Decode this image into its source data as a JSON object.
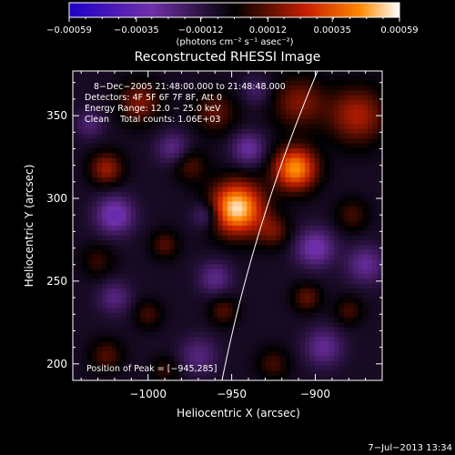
{
  "chart_data": {
    "type": "heatmap",
    "title": "Reconstructed RHESSI Image",
    "xlabel": "Heliocentric X (arcsec)",
    "ylabel": "Heliocentric Y (arcsec)",
    "xlim": [
      -1045,
      -860
    ],
    "ylim": [
      190,
      377
    ],
    "x_ticks": [
      -1000,
      -950,
      -900
    ],
    "x_tick_labels": [
      "−1000",
      "−950",
      "−900"
    ],
    "y_ticks": [
      200,
      250,
      300,
      350
    ],
    "y_tick_labels": [
      "200",
      "250",
      "300",
      "350"
    ],
    "colorbar": {
      "range": [
        -0.00059,
        0.00059
      ],
      "ticks": [
        -0.00059,
        -0.00035,
        -0.00012,
        0.00012,
        0.00035,
        0.00059
      ],
      "tick_labels": [
        "−0.00059",
        "−0.00035",
        "−0.00012",
        "0.00012",
        "0.00035",
        "0.00059"
      ],
      "unit_label": "(photons cm⁻² s⁻¹ asec⁻²)"
    },
    "info_lines": [
      "8−Dec−2005 21:48:00.000 to 21:48:48.000",
      "Detectors: 4F 5F 6F 7F 8F, Att 0",
      "Energy Range: 12.0 − 25.0 keV",
      "Clean    Total counts: 1.06E+03"
    ],
    "peak_label": "Position of Peak = [−945,285]",
    "peak": [
      -945,
      285
    ],
    "blobs": [
      {
        "x": -947,
        "y": 294,
        "v": 0.00062,
        "s": 11
      },
      {
        "x": -912,
        "y": 318,
        "v": 0.00052,
        "s": 9
      },
      {
        "x": -875,
        "y": 350,
        "v": 0.00028,
        "s": 12
      },
      {
        "x": -910,
        "y": 358,
        "v": 0.00022,
        "s": 11
      },
      {
        "x": -1005,
        "y": 358,
        "v": 0.00022,
        "s": 9
      },
      {
        "x": -960,
        "y": 352,
        "v": 0.00018,
        "s": 9
      },
      {
        "x": -1025,
        "y": 318,
        "v": 0.00026,
        "s": 7
      },
      {
        "x": -975,
        "y": 320,
        "v": 0.00016,
        "s": 7
      },
      {
        "x": -925,
        "y": 280,
        "v": 0.00018,
        "s": 7
      },
      {
        "x": -878,
        "y": 290,
        "v": 0.00014,
        "s": 7
      },
      {
        "x": -990,
        "y": 272,
        "v": 0.00016,
        "s": 6
      },
      {
        "x": -1030,
        "y": 262,
        "v": 0.00012,
        "s": 7
      },
      {
        "x": -1000,
        "y": 230,
        "v": 0.00014,
        "s": 6
      },
      {
        "x": -955,
        "y": 232,
        "v": 0.00016,
        "s": 6
      },
      {
        "x": -905,
        "y": 240,
        "v": 0.00018,
        "s": 6
      },
      {
        "x": -880,
        "y": 232,
        "v": 0.00014,
        "s": 6
      },
      {
        "x": -1025,
        "y": 205,
        "v": 0.00016,
        "s": 7
      },
      {
        "x": -990,
        "y": 196,
        "v": 0.00012,
        "s": 6
      },
      {
        "x": -925,
        "y": 200,
        "v": 0.00014,
        "s": 7
      },
      {
        "x": -1020,
        "y": 290,
        "v": -0.00028,
        "s": 8
      },
      {
        "x": -965,
        "y": 290,
        "v": -0.0002,
        "s": 6
      },
      {
        "x": -985,
        "y": 330,
        "v": -0.00018,
        "s": 7
      },
      {
        "x": -940,
        "y": 330,
        "v": -0.00022,
        "s": 7
      },
      {
        "x": -900,
        "y": 270,
        "v": -0.00026,
        "s": 8
      },
      {
        "x": -870,
        "y": 260,
        "v": -0.0002,
        "s": 8
      },
      {
        "x": -960,
        "y": 252,
        "v": -0.00018,
        "s": 7
      },
      {
        "x": -1020,
        "y": 240,
        "v": -0.00016,
        "s": 7
      },
      {
        "x": -970,
        "y": 205,
        "v": -0.00016,
        "s": 8
      },
      {
        "x": -895,
        "y": 210,
        "v": -0.0002,
        "s": 8
      },
      {
        "x": -1035,
        "y": 345,
        "v": -0.00014,
        "s": 6
      },
      {
        "x": -935,
        "y": 365,
        "v": -0.00012,
        "s": 6
      }
    ],
    "limb_arc": {
      "r_arcsec": 974.5
    },
    "colors": {
      "low": "#1e00c8",
      "mid_low": "#7030a8",
      "zero": "#000000",
      "mid_high": "#c82000",
      "high": "#ffffff"
    }
  },
  "timestamp": "7−Jul−2013 13:34"
}
